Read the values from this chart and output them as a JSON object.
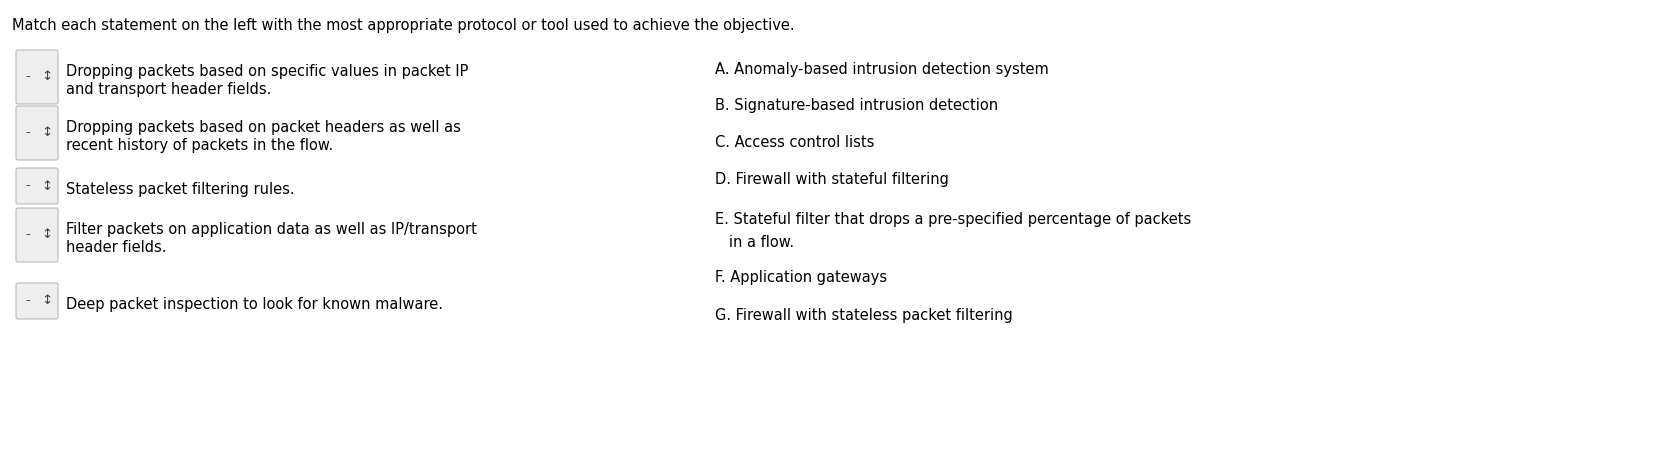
{
  "title": "Match each statement on the left with the most appropriate protocol or tool used to achieve the objective.",
  "background_color": "#ffffff",
  "text_color": "#000000",
  "title_fontsize": 10.5,
  "body_fontsize": 10.5,
  "left_items": [
    {
      "line1": "Dropping packets based on specific values in packet IP",
      "line2": "and transport header fields."
    },
    {
      "line1": "Dropping packets based on packet headers as well as",
      "line2": "recent history of packets in the flow."
    },
    {
      "line1": "Stateless packet filtering rules.",
      "line2": null
    },
    {
      "line1": "Filter packets on application data as well as IP/transport",
      "line2": "header fields."
    },
    {
      "line1": "Deep packet inspection to look for known malware.",
      "line2": null
    }
  ],
  "right_items": [
    {
      "text": "A. Anomaly-based intrusion detection system",
      "indent": false
    },
    {
      "text": "B. Signature-based intrusion detection",
      "indent": false
    },
    {
      "text": "C. Access control lists",
      "indent": false
    },
    {
      "text": "D. Firewall with stateful filtering",
      "indent": false
    },
    {
      "text": "E. Stateful filter that drops a pre-specified percentage of packets",
      "indent": false
    },
    {
      "text": "   in a flow.",
      "indent": true
    },
    {
      "text": "F. Application gateways",
      "indent": false
    },
    {
      "text": "G. Firewall with stateless packet filtering",
      "indent": false
    }
  ],
  "box_facecolor": "#eeeeee",
  "box_edgecolor": "#bbbbbb",
  "dash_color": "#444444",
  "arrow_color": "#444444"
}
